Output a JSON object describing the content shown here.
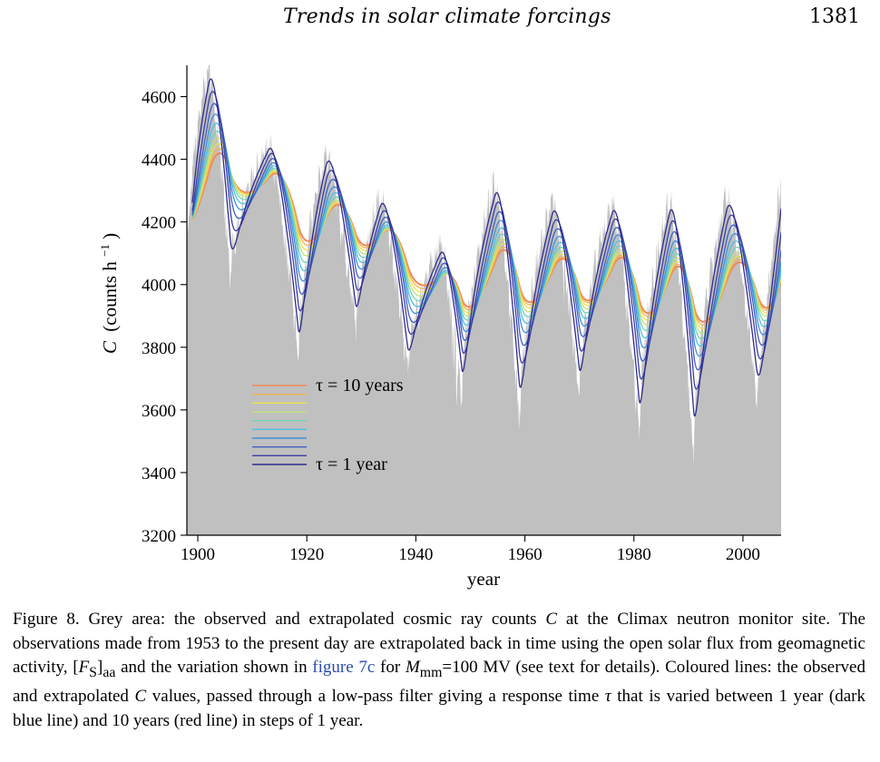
{
  "running_head": {
    "title": "Trends in solar climate forcings",
    "page_number": "1381"
  },
  "chart_data": {
    "type": "area+line",
    "xlabel": "year",
    "ylabel_main": "C",
    "ylabel_unit": "(counts h",
    "ylabel_sup": "−1",
    "ylabel_close": ")",
    "xlim": [
      1898,
      2007
    ],
    "ylim": [
      3200,
      4700
    ],
    "x_ticks": [
      1900,
      1920,
      1940,
      1960,
      1980,
      2000
    ],
    "x_tick_labels": [
      "1900",
      "1920",
      "1940",
      "1960",
      "1980",
      "2000"
    ],
    "y_ticks": [
      3200,
      3400,
      3600,
      3800,
      4000,
      4200,
      4400,
      4600
    ],
    "y_tick_labels": [
      "3200",
      "3400",
      "3600",
      "3800",
      "4000",
      "4200",
      "4400",
      "4600"
    ],
    "grey_area_color": "#c0c0c0",
    "cycle_maxima_years": [
      1902,
      1913,
      1923.5,
      1933.5,
      1944.5,
      1954.5,
      1965,
      1976,
      1986.5,
      1997
    ],
    "cycle_minima_years": [
      1898.5,
      1906,
      1918.5,
      1929,
      1938.5,
      1948.5,
      1959,
      1970,
      1981,
      1991
    ],
    "legend": {
      "top_label": "τ = 10 years",
      "bottom_label": "τ = 1 year"
    },
    "series_colors": [
      "#f08a5a",
      "#f3b153",
      "#f0e04a",
      "#bfe27a",
      "#6fd3b8",
      "#4fc0e0",
      "#3f90d8",
      "#3f5fc0",
      "#3a3ca6",
      "#2e2a8c"
    ]
  },
  "caption": {
    "part1": "Figure 8. Grey area: the observed and extrapolated cosmic ray counts ",
    "var_c": "C",
    "part2": " at the Climax neutron monitor site. The observations made from 1953 to the present day are extrapolated back in time using the open solar flux from geomagnetic activity, [",
    "var_fs": "F",
    "sub_s": "S",
    "part3": "]",
    "sub_aa": "aa",
    "part4": " and the variation shown in ",
    "fig_link": "figure 7c",
    "part5": " for ",
    "var_m": "M",
    "sub_mm": "mm",
    "part6": "=100 MV (see text for details). Coloured lines: the observed and extrapolated ",
    "var_c2": "C",
    "part7": " values, passed through a low-pass filter giving a response time ",
    "var_tau": "τ",
    "part8": " that is varied between 1 year (dark blue line) and 10 years (red line) in steps of 1 year."
  }
}
